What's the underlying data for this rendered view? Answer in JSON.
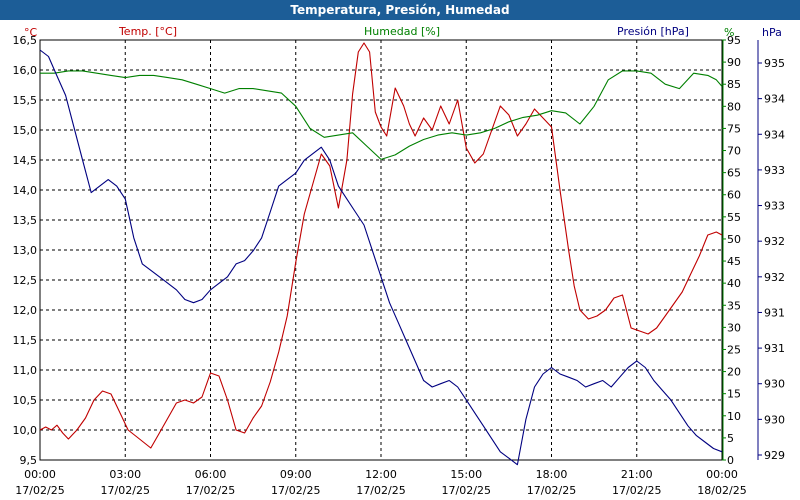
{
  "window": {
    "title": "Temperatura, Presión, Humedad"
  },
  "colors": {
    "title_bg": "#1c5d97",
    "temp": "#c00000",
    "hum": "#008000",
    "pres": "#000080",
    "grid": "#000000"
  },
  "chart_data": {
    "type": "line",
    "title": "Temperatura, Presión, Humedad",
    "legend": [
      "Temp. [°C]",
      "Humedad [%]",
      "Presión [hPa]"
    ],
    "grid": true,
    "x": {
      "ticks": [
        "00:00",
        "03:00",
        "06:00",
        "09:00",
        "12:00",
        "15:00",
        "18:00",
        "21:00",
        "00:00"
      ],
      "dates": [
        "17/02/25",
        "17/02/25",
        "17/02/25",
        "17/02/25",
        "17/02/25",
        "17/02/25",
        "17/02/25",
        "17/02/25",
        "18/02/25"
      ],
      "range_hours": [
        0,
        24
      ]
    },
    "axes": {
      "temp": {
        "unit": "°C",
        "range": [
          9.5,
          16.5
        ],
        "ticks": [
          "9,5",
          "10,0",
          "10,5",
          "11,0",
          "11,5",
          "12,0",
          "12,5",
          "13,0",
          "13,5",
          "14,0",
          "14,5",
          "15,0",
          "15,5",
          "16,0",
          "16,5"
        ]
      },
      "hum": {
        "unit": "%",
        "range": [
          0,
          95
        ],
        "ticks": [
          "0",
          "5",
          "10",
          "15",
          "20",
          "25",
          "30",
          "35",
          "40",
          "45",
          "50",
          "55",
          "60",
          "65",
          "70",
          "75",
          "80",
          "85",
          "90",
          "95"
        ]
      },
      "pres": {
        "unit": "hPa",
        "ticks": [
          "929",
          "930",
          "930",
          "931",
          "931",
          "932",
          "932",
          "933",
          "933",
          "934",
          "934",
          "935"
        ]
      }
    },
    "series": [
      {
        "name": "Temp. [°C]",
        "axis": "temp",
        "x": [
          0,
          0.2,
          0.4,
          0.6,
          0.8,
          1.0,
          1.3,
          1.6,
          1.9,
          2.2,
          2.5,
          2.8,
          3.1,
          3.5,
          3.9,
          4.2,
          4.5,
          4.8,
          5.1,
          5.4,
          5.7,
          6.0,
          6.3,
          6.6,
          6.9,
          7.2,
          7.5,
          7.8,
          8.1,
          8.4,
          8.7,
          9.0,
          9.3,
          9.6,
          9.9,
          10.2,
          10.5,
          10.8,
          11.0,
          11.2,
          11.4,
          11.6,
          11.8,
          12.0,
          12.2,
          12.5,
          12.8,
          13.0,
          13.2,
          13.5,
          13.8,
          14.1,
          14.4,
          14.7,
          15.0,
          15.3,
          15.6,
          15.9,
          16.2,
          16.5,
          16.8,
          17.1,
          17.4,
          17.7,
          18.0,
          18.3,
          18.6,
          18.8,
          19.0,
          19.3,
          19.6,
          19.9,
          20.2,
          20.5,
          20.8,
          21.1,
          21.4,
          21.7,
          22.0,
          22.3,
          22.6,
          22.9,
          23.2,
          23.5,
          23.8,
          24.0
        ],
        "y": [
          10.0,
          10.05,
          10.0,
          10.08,
          9.95,
          9.85,
          10.0,
          10.2,
          10.5,
          10.65,
          10.6,
          10.3,
          10.0,
          9.85,
          9.7,
          9.95,
          10.2,
          10.45,
          10.5,
          10.45,
          10.55,
          10.95,
          10.9,
          10.5,
          10.0,
          9.95,
          10.2,
          10.4,
          10.8,
          11.3,
          11.9,
          12.8,
          13.6,
          14.1,
          14.6,
          14.4,
          13.7,
          14.5,
          15.6,
          16.3,
          16.45,
          16.3,
          15.3,
          15.05,
          14.9,
          15.7,
          15.4,
          15.1,
          14.9,
          15.2,
          15.0,
          15.4,
          15.1,
          15.5,
          14.7,
          14.45,
          14.6,
          15.0,
          15.4,
          15.25,
          14.9,
          15.1,
          15.35,
          15.2,
          15.05,
          14.0,
          13.0,
          12.4,
          12.0,
          11.85,
          11.9,
          12.0,
          12.2,
          12.25,
          11.7,
          11.65,
          11.6,
          11.7,
          11.9,
          12.1,
          12.3,
          12.6,
          12.9,
          13.25,
          13.3,
          13.25
        ]
      },
      {
        "name": "Humedad [%]",
        "axis": "hum",
        "x": [
          0,
          0.5,
          1.0,
          1.5,
          2.0,
          2.5,
          3.0,
          3.5,
          4.0,
          4.5,
          5.0,
          5.5,
          6.0,
          6.5,
          7.0,
          7.5,
          8.0,
          8.5,
          9.0,
          9.5,
          10.0,
          10.5,
          11.0,
          11.5,
          12.0,
          12.5,
          13.0,
          13.5,
          14.0,
          14.5,
          15.0,
          15.5,
          16.0,
          16.5,
          17.0,
          17.5,
          18.0,
          18.5,
          19.0,
          19.5,
          20.0,
          20.5,
          21.0,
          21.5,
          22.0,
          22.5,
          23.0,
          23.5,
          23.8,
          24.0
        ],
        "y": [
          87.5,
          87.5,
          88,
          88,
          87.5,
          87,
          86.5,
          87,
          87,
          86.5,
          86,
          85,
          84,
          83,
          84,
          84,
          83.5,
          83,
          80,
          75,
          73,
          73.5,
          74,
          71,
          68,
          69,
          71,
          72.5,
          73.5,
          74,
          73.5,
          74,
          75,
          76.5,
          77.5,
          78,
          79,
          78.5,
          76,
          80,
          86,
          88,
          88,
          87.5,
          85,
          84,
          87.5,
          87,
          86,
          84.5
        ]
      },
      {
        "name": "Presión [hPa]",
        "axis": "pres",
        "x": [
          0,
          0.3,
          0.6,
          0.9,
          1.2,
          1.5,
          1.8,
          2.1,
          2.4,
          2.7,
          3.0,
          3.3,
          3.6,
          3.9,
          4.2,
          4.5,
          4.8,
          5.1,
          5.4,
          5.7,
          6.0,
          6.3,
          6.6,
          6.9,
          7.2,
          7.5,
          7.8,
          8.1,
          8.4,
          8.7,
          9.0,
          9.3,
          9.6,
          9.9,
          10.2,
          10.5,
          10.8,
          11.1,
          11.4,
          11.7,
          12.0,
          12.3,
          12.6,
          12.9,
          13.2,
          13.5,
          13.8,
          14.1,
          14.4,
          14.7,
          15.0,
          15.3,
          15.6,
          15.9,
          16.2,
          16.5,
          16.8,
          17.1,
          17.4,
          17.7,
          18.0,
          18.3,
          18.6,
          18.9,
          19.2,
          19.5,
          19.8,
          20.1,
          20.4,
          20.7,
          21.0,
          21.3,
          21.6,
          21.9,
          22.2,
          22.5,
          22.8,
          23.1,
          23.4,
          23.7,
          24.0
        ],
        "y": [
          935.0,
          934.9,
          934.6,
          934.3,
          933.8,
          933.3,
          932.8,
          932.9,
          933.0,
          932.9,
          932.7,
          932.1,
          931.7,
          931.6,
          931.5,
          931.4,
          931.3,
          931.15,
          931.1,
          931.15,
          931.3,
          931.4,
          931.5,
          931.7,
          931.75,
          931.9,
          932.1,
          932.5,
          932.9,
          933.0,
          933.1,
          933.3,
          933.4,
          933.5,
          933.3,
          932.9,
          932.7,
          932.5,
          932.3,
          931.9,
          931.5,
          931.1,
          930.8,
          930.5,
          930.2,
          929.9,
          929.8,
          929.85,
          929.9,
          929.8,
          929.6,
          929.4,
          929.2,
          929.0,
          928.8,
          928.7,
          928.6,
          929.3,
          929.8,
          930.0,
          930.1,
          930.0,
          929.95,
          929.9,
          929.8,
          929.85,
          929.9,
          929.8,
          929.95,
          930.1,
          930.2,
          930.1,
          929.9,
          929.75,
          929.6,
          929.4,
          929.2,
          929.05,
          928.95,
          928.85,
          928.8
        ]
      }
    ]
  }
}
